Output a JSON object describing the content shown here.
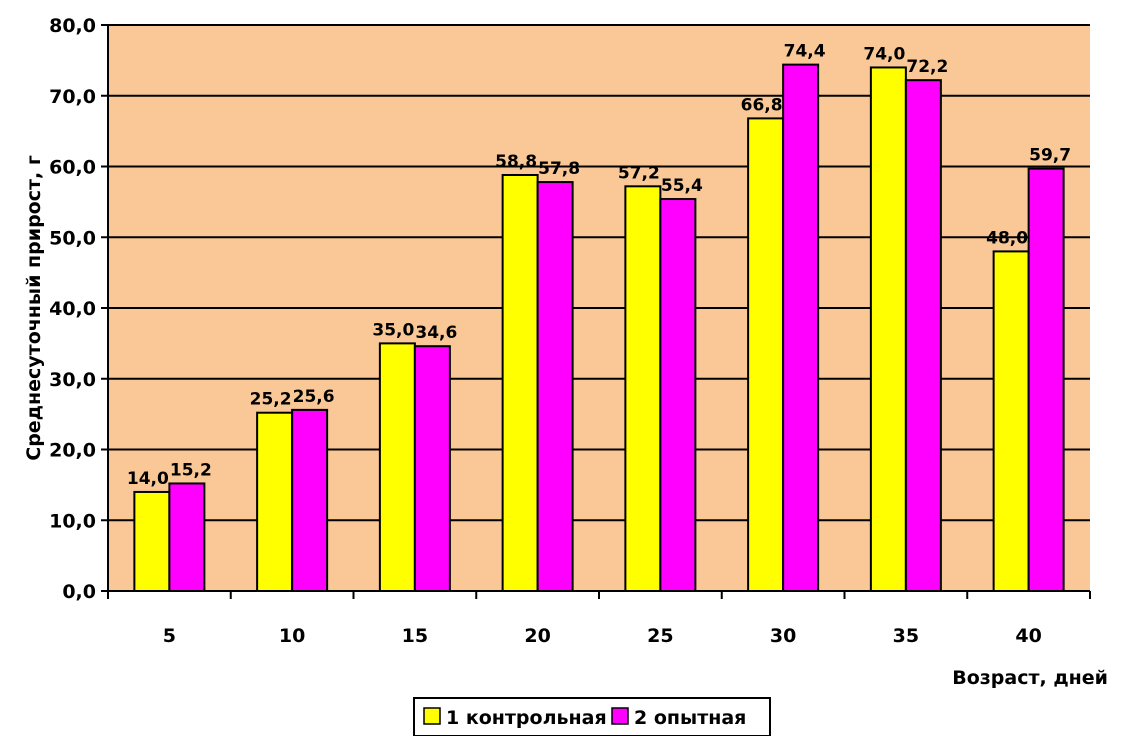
{
  "chart_data": {
    "type": "bar",
    "title": "",
    "xlabel": "Возраст, дней",
    "ylabel": "Среднесуточный прирост, г",
    "categories": [
      "5",
      "10",
      "15",
      "20",
      "25",
      "30",
      "35",
      "40"
    ],
    "series": [
      {
        "name": "1 контрольная",
        "color": "#ffff00",
        "values": [
          14.0,
          25.2,
          35.0,
          58.8,
          57.2,
          66.8,
          74.0,
          48.0
        ],
        "labels": [
          "14,0",
          "25,2",
          "35,0",
          "58,8",
          "57,2",
          "66,8",
          "74,0",
          "48,0"
        ]
      },
      {
        "name": "2 опытная",
        "color": "#ff00ff",
        "values": [
          15.2,
          25.6,
          34.6,
          57.8,
          55.4,
          74.4,
          72.2,
          59.7
        ],
        "labels": [
          "15,2",
          "25,6",
          "34,6",
          "57,8",
          "55,4",
          "74,4",
          "72,2",
          "59,7"
        ]
      }
    ],
    "ylim": [
      0,
      80
    ],
    "yticks": [
      0,
      10,
      20,
      30,
      40,
      50,
      60,
      70,
      80
    ],
    "ytick_labels": [
      "0,0",
      "10,0",
      "20,0",
      "30,0",
      "40,0",
      "50,0",
      "60,0",
      "70,0",
      "80,0"
    ],
    "grid": true,
    "plot_background": "#fac896",
    "legend_position": "bottom-center"
  }
}
